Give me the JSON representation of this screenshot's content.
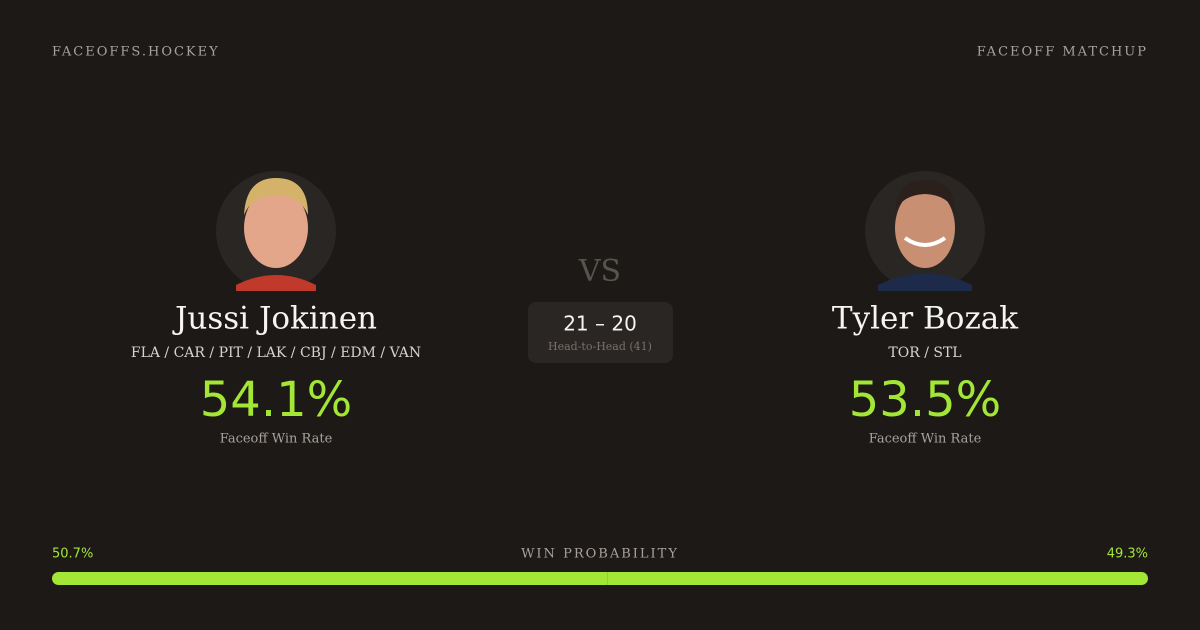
{
  "header": {
    "brand": "FACEOFFS.HOCKEY",
    "label": "FACEOFF MATCHUP"
  },
  "players": [
    {
      "name": "Jussi Jokinen",
      "teams": "FLA / CAR / PIT / LAK / CBJ / EDM / VAN",
      "win_rate": "54.1%",
      "win_rate_label": "Faceoff Win Rate"
    },
    {
      "name": "Tyler Bozak",
      "teams": "TOR / STL",
      "win_rate": "53.5%",
      "win_rate_label": "Faceoff Win Rate"
    }
  ],
  "versus": "VS",
  "head_to_head": {
    "score": "21 – 20",
    "label": "Head-to-Head (41)"
  },
  "win_probability": {
    "label": "WIN PROBABILITY",
    "values": [
      50.7,
      49.3
    ],
    "value_labels": [
      "50.7%",
      "49.3%"
    ],
    "color": "#a3e635"
  }
}
